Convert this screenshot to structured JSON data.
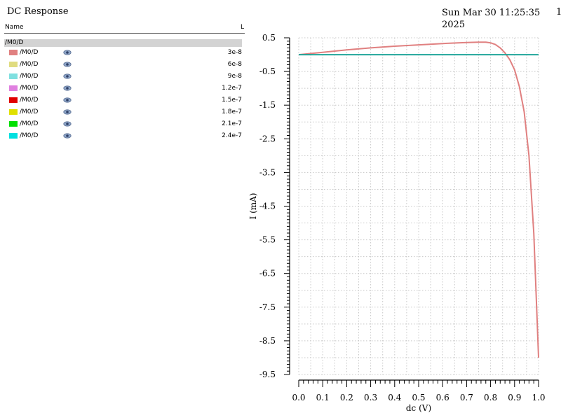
{
  "header": {
    "title": "DC Response",
    "timestamp": "Sun Mar 30 11:25:35 2025",
    "page_number": "1"
  },
  "legend_panel": {
    "columns": {
      "name": "Name",
      "value": "L"
    },
    "group": "/M0/D",
    "items": [
      {
        "name": "/M0/D",
        "value": "3e-8",
        "color": "#e08080",
        "icon": "eye-icon"
      },
      {
        "name": "/M0/D",
        "value": "6e-8",
        "color": "#e0dc80",
        "icon": "eye-icon"
      },
      {
        "name": "/M0/D",
        "value": "9e-8",
        "color": "#80e0e0",
        "icon": "eye-icon"
      },
      {
        "name": "/M0/D",
        "value": "1.2e-7",
        "color": "#e080e0",
        "icon": "eye-icon"
      },
      {
        "name": "/M0/D",
        "value": "1.5e-7",
        "color": "#e00000",
        "icon": "eye-icon"
      },
      {
        "name": "/M0/D",
        "value": "1.8e-7",
        "color": "#e0e000",
        "icon": "eye-icon"
      },
      {
        "name": "/M0/D",
        "value": "2.1e-7",
        "color": "#00e000",
        "icon": "eye-icon"
      },
      {
        "name": "/M0/D",
        "value": "2.4e-7",
        "color": "#00e0e0",
        "icon": "eye-icon"
      }
    ]
  },
  "chart_data": {
    "type": "line",
    "xlabel": "dc (V)",
    "ylabel": "I (mA)",
    "xlim": [
      0.0,
      1.0
    ],
    "ylim": [
      -9.5,
      0.5
    ],
    "x_ticks": [
      "0.0",
      "0.1",
      "0.2",
      "0.3",
      "0.4",
      "0.5",
      "0.6",
      "0.7",
      "0.8",
      "0.9",
      "1.0"
    ],
    "y_ticks": [
      "0.5",
      "-0.5",
      "-1.5",
      "-2.5",
      "-3.5",
      "-4.5",
      "-5.5",
      "-6.5",
      "-7.5",
      "-8.5",
      "-9.5"
    ],
    "grid": true,
    "series": [
      {
        "name": "/M0/D",
        "color": "#e08080",
        "x": [
          0.0,
          0.1,
          0.2,
          0.3,
          0.4,
          0.5,
          0.6,
          0.7,
          0.75,
          0.78,
          0.8,
          0.82,
          0.84,
          0.86,
          0.88,
          0.9,
          0.92,
          0.94,
          0.96,
          0.98,
          1.0
        ],
        "y": [
          0.0,
          0.07,
          0.14,
          0.2,
          0.25,
          0.29,
          0.33,
          0.36,
          0.37,
          0.37,
          0.35,
          0.3,
          0.2,
          0.05,
          -0.15,
          -0.45,
          -0.95,
          -1.7,
          -3.0,
          -5.3,
          -9.0
        ]
      },
      {
        "name": "/M0/D",
        "color": "#1fa59a",
        "x": [
          0.0,
          1.0
        ],
        "y": [
          0.0,
          0.0
        ]
      }
    ]
  }
}
